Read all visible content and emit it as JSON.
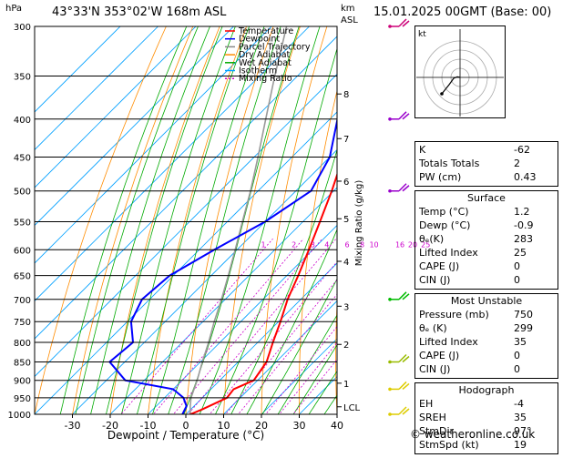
{
  "header": {
    "location": "43°33'N 353°02'W 168m ASL",
    "datetime": "15.01.2025 00GMT (Base: 00)"
  },
  "axes_labels": {
    "pressure_unit": "hPa",
    "height_unit_top": "km",
    "height_unit_bottom": "ASL",
    "xlabel": "Dewpoint / Temperature (°C)",
    "mixing_ratio_label": "Mixing Ratio (g/kg)",
    "lcl_label": "LCL"
  },
  "legend": [
    {
      "label": "Temperature",
      "color": "#ff0000",
      "dash": ""
    },
    {
      "label": "Dewpoint",
      "color": "#0000ff",
      "dash": ""
    },
    {
      "label": "Parcel Trajectory",
      "color": "#888888",
      "dash": ""
    },
    {
      "label": "Dry Adiabat",
      "color": "#ff8c00",
      "dash": ""
    },
    {
      "label": "Wet Adiabat",
      "color": "#00aa00",
      "dash": ""
    },
    {
      "label": "Isotherm",
      "color": "#00a0ff",
      "dash": ""
    },
    {
      "label": "Mixing Ratio",
      "color": "#cc00cc",
      "dash": "2,2"
    }
  ],
  "chart_data": {
    "type": "skew-t log-p",
    "pressure_ticks": [
      300,
      350,
      400,
      450,
      500,
      550,
      600,
      650,
      700,
      750,
      800,
      850,
      900,
      950,
      1000
    ],
    "temperature_ticks": [
      -30,
      -20,
      -10,
      0,
      10,
      20,
      30,
      40
    ],
    "xlim": [
      -40,
      40
    ],
    "ylim": [
      1000,
      300
    ],
    "height_km_ticks": [
      {
        "label": "8",
        "p": 370
      },
      {
        "label": "7",
        "p": 425
      },
      {
        "label": "6",
        "p": 485
      },
      {
        "label": "5",
        "p": 545
      },
      {
        "label": "4",
        "p": 622
      },
      {
        "label": "3",
        "p": 715
      },
      {
        "label": "2",
        "p": 805
      },
      {
        "label": "1",
        "p": 908
      },
      {
        "label": "LCL",
        "p": 977
      }
    ],
    "mixing_ratio_labels": [
      "1",
      "2",
      "3",
      "4",
      "6",
      "8",
      "10",
      "16",
      "20",
      "25"
    ],
    "mixing_ratio_values": [
      1,
      2,
      3,
      4,
      6,
      8,
      10,
      16,
      20,
      25
    ],
    "mixing_ratio_label_p": 600,
    "temperature_profile": [
      {
        "p": 1000,
        "t": 1.2
      },
      {
        "p": 985,
        "t": 3.0
      },
      {
        "p": 950,
        "t": 6.5
      },
      {
        "p": 925,
        "t": 6.0
      },
      {
        "p": 900,
        "t": 9.0
      },
      {
        "p": 850,
        "t": 7.5
      },
      {
        "p": 800,
        "t": 4.0
      },
      {
        "p": 750,
        "t": 0.5
      },
      {
        "p": 700,
        "t": -3.5
      },
      {
        "p": 650,
        "t": -7.0
      },
      {
        "p": 600,
        "t": -11.0
      },
      {
        "p": 550,
        "t": -15.5
      },
      {
        "p": 500,
        "t": -20.5
      },
      {
        "p": 450,
        "t": -26.5
      },
      {
        "p": 400,
        "t": -33.5
      },
      {
        "p": 350,
        "t": -41.0
      },
      {
        "p": 300,
        "t": -50.0
      }
    ],
    "dewpoint_profile": [
      {
        "p": 1000,
        "t": -0.9
      },
      {
        "p": 975,
        "t": -2.0
      },
      {
        "p": 950,
        "t": -5.0
      },
      {
        "p": 925,
        "t": -10.0
      },
      {
        "p": 900,
        "t": -25.0
      },
      {
        "p": 850,
        "t": -34.0
      },
      {
        "p": 800,
        "t": -33.0
      },
      {
        "p": 750,
        "t": -39.0
      },
      {
        "p": 700,
        "t": -42.0
      },
      {
        "p": 650,
        "t": -41.0
      },
      {
        "p": 600,
        "t": -36.0
      },
      {
        "p": 550,
        "t": -30.0
      },
      {
        "p": 500,
        "t": -26.0
      },
      {
        "p": 450,
        "t": -30.0
      },
      {
        "p": 400,
        "t": -38.0
      },
      {
        "p": 350,
        "t": -46.0
      },
      {
        "p": 300,
        "t": -57.0
      }
    ],
    "parcel_profile": [
      {
        "p": 1000,
        "t": 1.2
      },
      {
        "p": 975,
        "t": -1.0
      },
      {
        "p": 950,
        "t": -3.0
      },
      {
        "p": 900,
        "t": -6.0
      },
      {
        "p": 850,
        "t": -9.5
      },
      {
        "p": 800,
        "t": -13.0
      },
      {
        "p": 750,
        "t": -17.0
      },
      {
        "p": 700,
        "t": -21.0
      },
      {
        "p": 650,
        "t": -25.5
      },
      {
        "p": 600,
        "t": -30.5
      },
      {
        "p": 550,
        "t": -36.0
      },
      {
        "p": 500,
        "t": -42.0
      },
      {
        "p": 450,
        "t": -49.0
      },
      {
        "p": 400,
        "t": -57.0
      },
      {
        "p": 350,
        "t": -66.0
      },
      {
        "p": 300,
        "t": -76.0
      }
    ],
    "wind_barbs": [
      {
        "p": 300,
        "color": "#cc0077"
      },
      {
        "p": 400,
        "color": "#9900cc"
      },
      {
        "p": 500,
        "color": "#9900cc"
      },
      {
        "p": 700,
        "color": "#00bb00"
      },
      {
        "p": 850,
        "color": "#99bb00"
      },
      {
        "p": 925,
        "color": "#ddcc00"
      },
      {
        "p": 1000,
        "color": "#ddcc00"
      }
    ]
  },
  "hodograph": {
    "label": "kt",
    "points": [
      [
        0.0,
        0.0
      ],
      [
        -1.5,
        0.3
      ],
      [
        -3.5,
        -0.5
      ],
      [
        -6.0,
        -4.0
      ],
      [
        -10.0,
        -9.0
      ]
    ]
  },
  "indices": [
    {
      "label": "K",
      "value": "-62"
    },
    {
      "label": "Totals Totals",
      "value": "2"
    },
    {
      "label": "PW (cm)",
      "value": "0.43"
    }
  ],
  "surface": {
    "title": "Surface",
    "rows": [
      {
        "label": "Temp (°C)",
        "value": "1.2"
      },
      {
        "label": "Dewp (°C)",
        "value": "-0.9"
      },
      {
        "label": "θₑ(K)",
        "value": "283"
      },
      {
        "label": "Lifted Index",
        "value": "25"
      },
      {
        "label": "CAPE (J)",
        "value": "0"
      },
      {
        "label": "CIN (J)",
        "value": "0"
      }
    ]
  },
  "most_unstable": {
    "title": "Most Unstable",
    "rows": [
      {
        "label": "Pressure (mb)",
        "value": "750"
      },
      {
        "label": "θₑ (K)",
        "value": "299"
      },
      {
        "label": "Lifted Index",
        "value": "35"
      },
      {
        "label": "CAPE (J)",
        "value": "0"
      },
      {
        "label": "CIN (J)",
        "value": "0"
      }
    ]
  },
  "hodograph_table": {
    "title": "Hodograph",
    "rows": [
      {
        "label": "EH",
        "value": "-4"
      },
      {
        "label": "SREH",
        "value": "35"
      },
      {
        "label": "StmDir",
        "value": "97°"
      },
      {
        "label": "StmSpd (kt)",
        "value": "19"
      }
    ]
  },
  "footer": {
    "copyright": "© weatheronline.co.uk"
  }
}
